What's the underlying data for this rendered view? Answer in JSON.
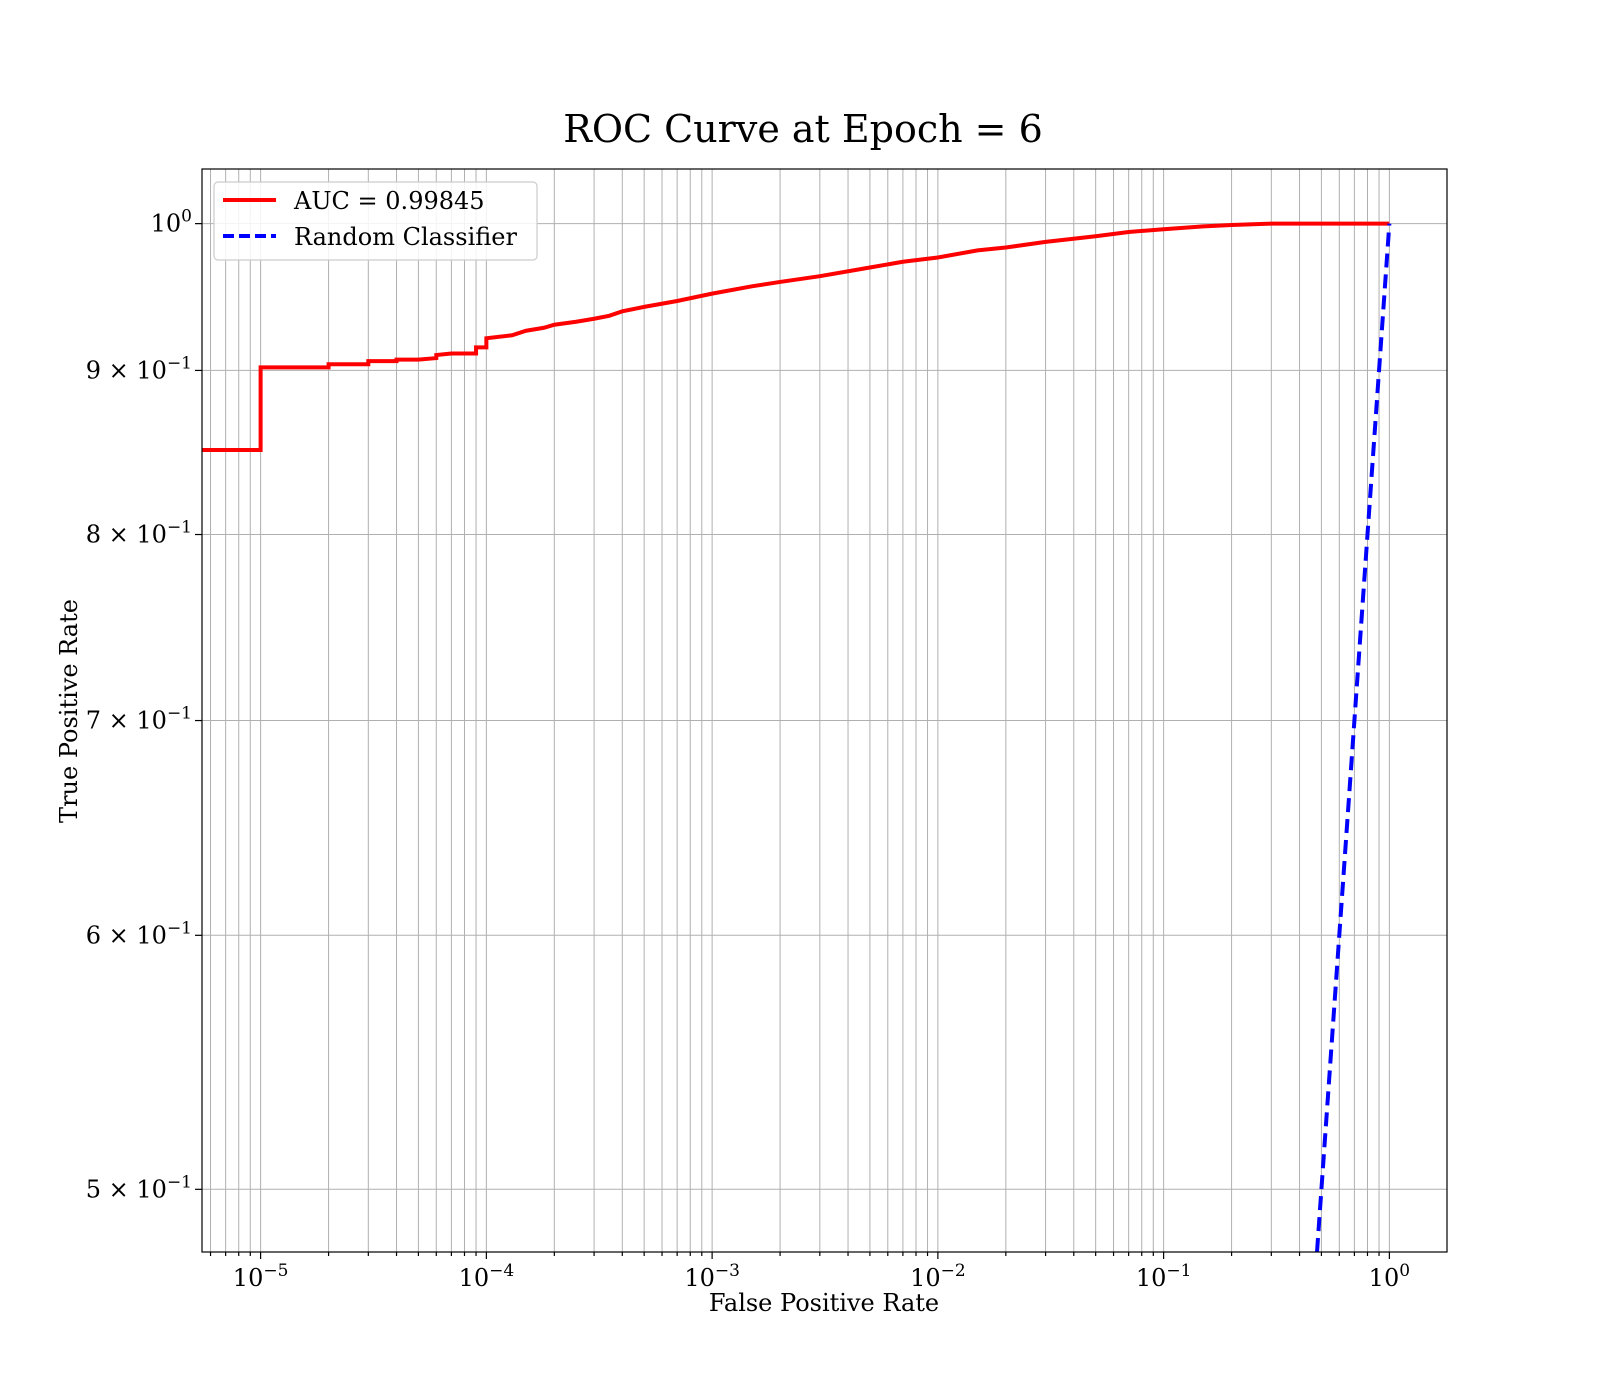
{
  "chart_data": {
    "type": "line",
    "title": "ROC Curve at Epoch = 6",
    "xlabel": "False Positive Rate",
    "ylabel": "True Positive Rate",
    "xscale": "log",
    "yscale": "log",
    "xlim": [
      5.5e-06,
      1.8
    ],
    "ylim": [
      0.478,
      1.04
    ],
    "grid": true,
    "grid_minor": true,
    "legend_position": "top-left",
    "x_ticks": [
      {
        "value": 1e-05,
        "base": "10",
        "exp": "−5"
      },
      {
        "value": 0.0001,
        "base": "10",
        "exp": "−4"
      },
      {
        "value": 0.001,
        "base": "10",
        "exp": "−3"
      },
      {
        "value": 0.01,
        "base": "10",
        "exp": "−2"
      },
      {
        "value": 0.1,
        "base": "10",
        "exp": "−1"
      },
      {
        "value": 1,
        "base": "10",
        "exp": "0"
      }
    ],
    "y_ticks": [
      {
        "value": 0.5,
        "base": "5 × 10",
        "exp": "−1"
      },
      {
        "value": 0.6,
        "base": "6 × 10",
        "exp": "−1"
      },
      {
        "value": 0.7,
        "base": "7 × 10",
        "exp": "−1"
      },
      {
        "value": 0.8,
        "base": "8 × 10",
        "exp": "−1"
      },
      {
        "value": 0.9,
        "base": "9 × 10",
        "exp": "−1"
      },
      {
        "value": 1.0,
        "base": "10",
        "exp": "0"
      }
    ],
    "series": [
      {
        "name": "AUC = 0.99845",
        "color": "#ff0000",
        "style": "solid",
        "x": [
          5.5e-06,
          1e-05,
          1e-05,
          2e-05,
          2e-05,
          3e-05,
          3e-05,
          4e-05,
          4e-05,
          5e-05,
          6e-05,
          6e-05,
          7e-05,
          9e-05,
          9e-05,
          0.0001,
          0.0001,
          0.00013,
          0.00015,
          0.00018,
          0.0002,
          0.00025,
          0.0003,
          0.00035,
          0.0004,
          0.0005,
          0.0007,
          0.001,
          0.0015,
          0.002,
          0.003,
          0.005,
          0.007,
          0.01,
          0.015,
          0.02,
          0.03,
          0.05,
          0.07,
          0.1,
          0.15,
          0.2,
          0.3,
          0.5,
          0.7,
          1
        ],
        "y": [
          0.85,
          0.85,
          0.902,
          0.902,
          0.904,
          0.904,
          0.906,
          0.906,
          0.907,
          0.907,
          0.908,
          0.91,
          0.911,
          0.911,
          0.915,
          0.915,
          0.921,
          0.923,
          0.926,
          0.928,
          0.93,
          0.932,
          0.934,
          0.936,
          0.939,
          0.942,
          0.946,
          0.951,
          0.956,
          0.959,
          0.963,
          0.969,
          0.973,
          0.976,
          0.981,
          0.983,
          0.987,
          0.991,
          0.994,
          0.996,
          0.998,
          0.999,
          1.0,
          1.0,
          1.0,
          1.0
        ]
      },
      {
        "name": "Random Classifier",
        "color": "#0000ff",
        "style": "dashed",
        "x": [
          0.478,
          0.6,
          0.8,
          1
        ],
        "y": [
          0.478,
          0.6,
          0.8,
          1
        ]
      }
    ]
  }
}
